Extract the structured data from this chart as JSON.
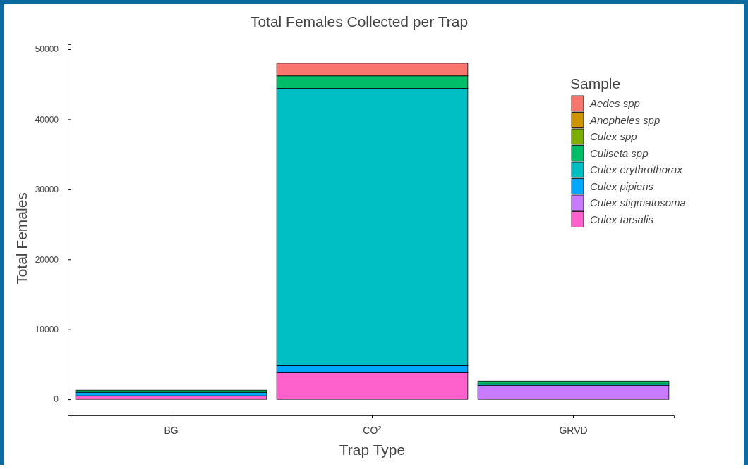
{
  "chart_data": {
    "type": "bar",
    "title": "Total Females Collected per Trap",
    "xlabel": "Trap Type",
    "ylabel": "Total Females",
    "legend_title": "Sample",
    "categories": [
      "BG",
      "CO$^{2}$",
      "GRVD"
    ],
    "stacked": true,
    "ylim": [
      -2300,
      50700
    ],
    "yticks": [
      0,
      10000,
      20000,
      30000,
      40000,
      50000
    ],
    "grid": false,
    "legend": "top right",
    "series": [
      {
        "name": "Culex tarsalis",
        "color": "#ff61cc",
        "values": [
          500,
          3900,
          0
        ]
      },
      {
        "name": "Culex stigmatosoma",
        "color": "#c77cff",
        "values": [
          null,
          null,
          2000
        ]
      },
      {
        "name": "Culex pipiens",
        "color": "#00a9ff",
        "values": [
          500,
          900,
          null
        ]
      },
      {
        "name": "Culex erythrothorax",
        "color": "#00bfc4",
        "values": [
          100,
          39600,
          200
        ]
      },
      {
        "name": "Culiseta spp",
        "color": "#00be67",
        "values": [
          200,
          1800,
          400
        ]
      },
      {
        "name": "Culex spp",
        "color": "#7cae00",
        "values": [
          0,
          0,
          0
        ]
      },
      {
        "name": "Anopheles spp",
        "color": "#cd9600",
        "values": [
          0,
          0,
          0
        ]
      },
      {
        "name": "Aedes spp",
        "color": "#f8766d",
        "values": [
          0,
          1800,
          0
        ]
      }
    ]
  }
}
